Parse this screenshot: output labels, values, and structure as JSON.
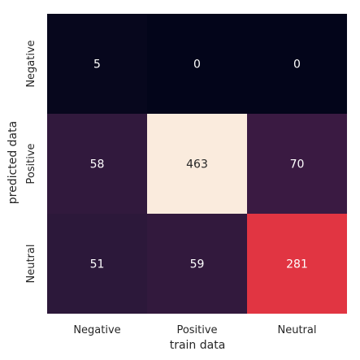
{
  "chart_data": {
    "type": "heatmap",
    "title": "",
    "xlabel": "train data",
    "ylabel": "predicted data",
    "x_categories": [
      "Negative",
      "Positive",
      "Neutral"
    ],
    "y_categories": [
      "Negative",
      "Positive",
      "Neutral"
    ],
    "values": [
      [
        5,
        0,
        0
      ],
      [
        58,
        463,
        70
      ],
      [
        51,
        59,
        281
      ]
    ],
    "value_range": [
      0,
      463
    ],
    "colormap": "rocket",
    "colorbar": false,
    "grid": false,
    "colors": {
      "low": "#03051a",
      "high": "#faebdd",
      "dark_text": "#262626",
      "light_text": "#ffffff"
    }
  }
}
